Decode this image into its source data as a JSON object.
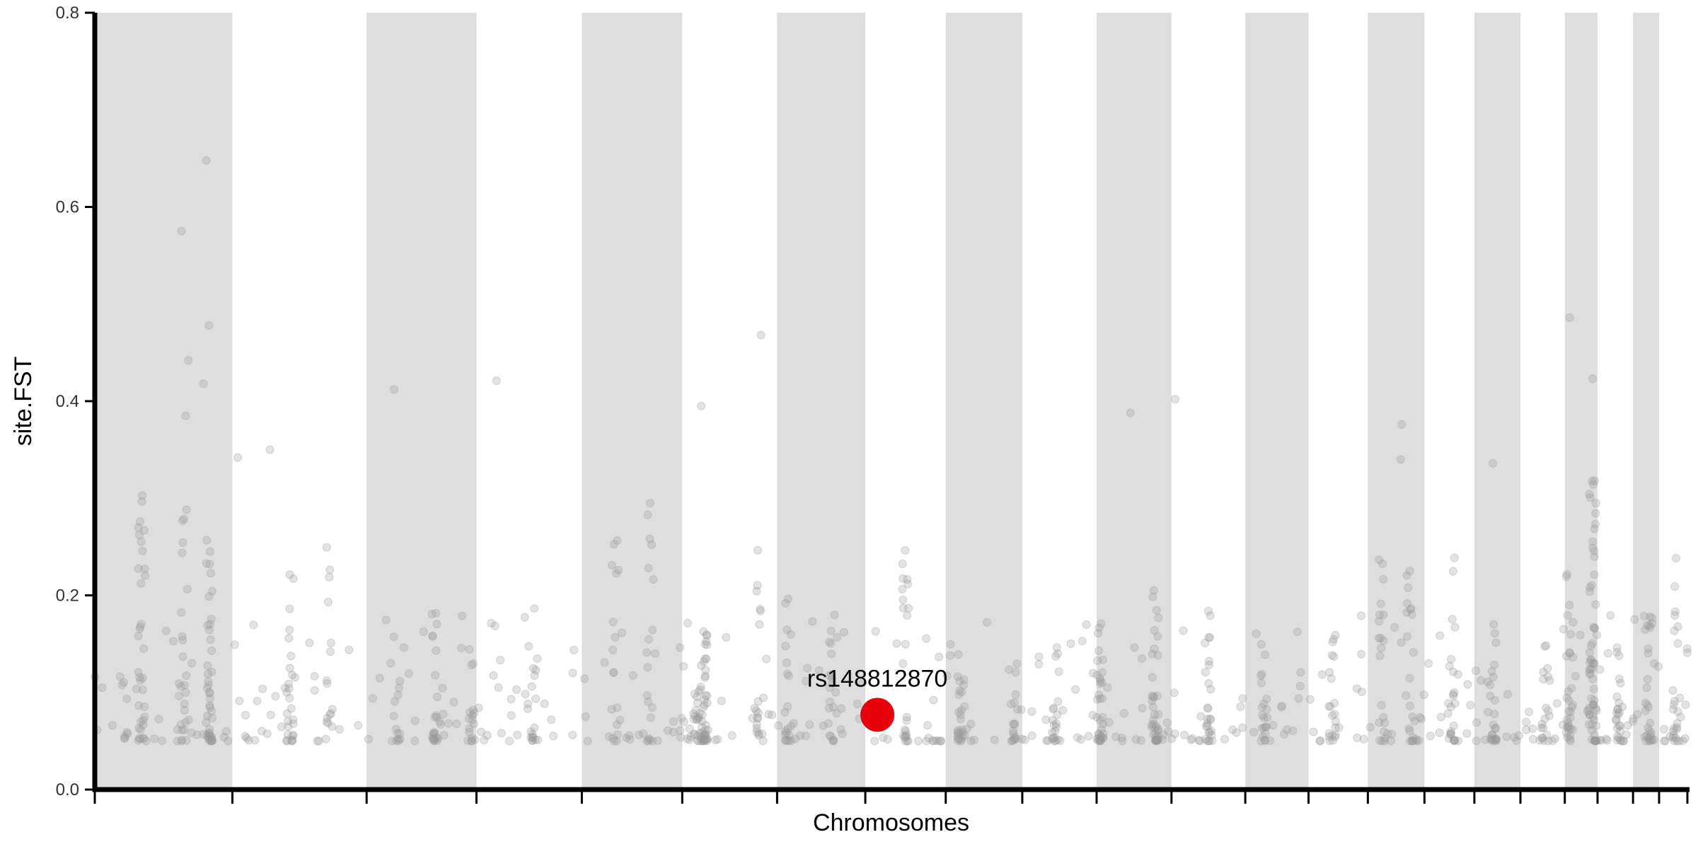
{
  "chart_data": {
    "type": "scatter",
    "title": "",
    "xlabel": "Chromosomes",
    "ylabel": "site.FST",
    "ylim": [
      0,
      0.8
    ],
    "yticks": [
      "0.0",
      "0.2",
      "0.4",
      "0.6",
      "0.8"
    ],
    "grid": false,
    "chromosome_band_color": "#dedede",
    "point_color": "#999999",
    "highlight_color": "#e8000b",
    "chromosomes": [
      {
        "index": 1,
        "length": 248,
        "shaded": true
      },
      {
        "index": 2,
        "length": 242,
        "shaded": false
      },
      {
        "index": 3,
        "length": 198,
        "shaded": true
      },
      {
        "index": 4,
        "length": 190,
        "shaded": false
      },
      {
        "index": 5,
        "length": 181,
        "shaded": true
      },
      {
        "index": 6,
        "length": 171,
        "shaded": false
      },
      {
        "index": 7,
        "length": 159,
        "shaded": true
      },
      {
        "index": 8,
        "length": 145,
        "shaded": false
      },
      {
        "index": 9,
        "length": 138,
        "shaded": true
      },
      {
        "index": 10,
        "length": 134,
        "shaded": false
      },
      {
        "index": 11,
        "length": 135,
        "shaded": true
      },
      {
        "index": 12,
        "length": 133,
        "shaded": false
      },
      {
        "index": 13,
        "length": 114,
        "shaded": true
      },
      {
        "index": 14,
        "length": 107,
        "shaded": false
      },
      {
        "index": 15,
        "length": 102,
        "shaded": true
      },
      {
        "index": 16,
        "length": 90,
        "shaded": false
      },
      {
        "index": 17,
        "length": 83,
        "shaded": true
      },
      {
        "index": 18,
        "length": 80,
        "shaded": false
      },
      {
        "index": 19,
        "length": 59,
        "shaded": true
      },
      {
        "index": 20,
        "length": 64,
        "shaded": false
      },
      {
        "index": 21,
        "length": 47,
        "shaded": true
      },
      {
        "index": 22,
        "length": 51,
        "shaded": false
      }
    ],
    "clusters": [
      {
        "chrom": 1,
        "pos": 0.34,
        "n": 34,
        "max": 0.32
      },
      {
        "chrom": 1,
        "pos": 0.65,
        "n": 22,
        "max": 0.29
      },
      {
        "chrom": 1,
        "pos": 0.83,
        "n": 42,
        "max": 0.28
      },
      {
        "chrom": 2,
        "pos": 0.43,
        "n": 18,
        "max": 0.25
      },
      {
        "chrom": 2,
        "pos": 0.72,
        "n": 14,
        "max": 0.26
      },
      {
        "chrom": 3,
        "pos": 0.28,
        "n": 12,
        "max": 0.17
      },
      {
        "chrom": 3,
        "pos": 0.62,
        "n": 22,
        "max": 0.26
      },
      {
        "chrom": 3,
        "pos": 0.96,
        "n": 12,
        "max": 0.15
      },
      {
        "chrom": 4,
        "pos": 0.55,
        "n": 16,
        "max": 0.23
      },
      {
        "chrom": 5,
        "pos": 0.33,
        "n": 16,
        "max": 0.26
      },
      {
        "chrom": 5,
        "pos": 0.68,
        "n": 16,
        "max": 0.3
      },
      {
        "chrom": 6,
        "pos": 0.15,
        "n": 16,
        "max": 0.12
      },
      {
        "chrom": 6,
        "pos": 0.23,
        "n": 44,
        "max": 0.17
      },
      {
        "chrom": 6,
        "pos": 0.82,
        "n": 16,
        "max": 0.25
      },
      {
        "chrom": 7,
        "pos": 0.12,
        "n": 20,
        "max": 0.21
      },
      {
        "chrom": 7,
        "pos": 0.62,
        "n": 18,
        "max": 0.18
      },
      {
        "chrom": 8,
        "pos": 0.5,
        "n": 22,
        "max": 0.27
      },
      {
        "chrom": 9,
        "pos": 0.2,
        "n": 20,
        "max": 0.12
      },
      {
        "chrom": 9,
        "pos": 0.9,
        "n": 16,
        "max": 0.13
      },
      {
        "chrom": 10,
        "pos": 0.45,
        "n": 20,
        "max": 0.18
      },
      {
        "chrom": 11,
        "pos": 0.05,
        "n": 36,
        "max": 0.18
      },
      {
        "chrom": 11,
        "pos": 0.78,
        "n": 36,
        "max": 0.22
      },
      {
        "chrom": 12,
        "pos": 0.5,
        "n": 24,
        "max": 0.19
      },
      {
        "chrom": 13,
        "pos": 0.3,
        "n": 18,
        "max": 0.15
      },
      {
        "chrom": 14,
        "pos": 0.4,
        "n": 18,
        "max": 0.17
      },
      {
        "chrom": 15,
        "pos": 0.25,
        "n": 20,
        "max": 0.28
      },
      {
        "chrom": 15,
        "pos": 0.75,
        "n": 20,
        "max": 0.24
      },
      {
        "chrom": 16,
        "pos": 0.55,
        "n": 20,
        "max": 0.27
      },
      {
        "chrom": 17,
        "pos": 0.4,
        "n": 22,
        "max": 0.21
      },
      {
        "chrom": 18,
        "pos": 0.55,
        "n": 16,
        "max": 0.15
      },
      {
        "chrom": 19,
        "pos": 0.15,
        "n": 26,
        "max": 0.23
      },
      {
        "chrom": 19,
        "pos": 0.85,
        "n": 60,
        "max": 0.34
      },
      {
        "chrom": 20,
        "pos": 0.6,
        "n": 22,
        "max": 0.15
      },
      {
        "chrom": 21,
        "pos": 0.6,
        "n": 22,
        "max": 0.21
      },
      {
        "chrom": 22,
        "pos": 0.6,
        "n": 20,
        "max": 0.27
      }
    ],
    "outliers": [
      {
        "chrom": 1,
        "pos": 0.63,
        "y": 0.575
      },
      {
        "chrom": 1,
        "pos": 0.81,
        "y": 0.648
      },
      {
        "chrom": 1,
        "pos": 0.83,
        "y": 0.478
      },
      {
        "chrom": 1,
        "pos": 0.68,
        "y": 0.442
      },
      {
        "chrom": 1,
        "pos": 0.79,
        "y": 0.418
      },
      {
        "chrom": 1,
        "pos": 0.66,
        "y": 0.385
      },
      {
        "chrom": 2,
        "pos": 0.04,
        "y": 0.342
      },
      {
        "chrom": 2,
        "pos": 0.28,
        "y": 0.35
      },
      {
        "chrom": 3,
        "pos": 0.25,
        "y": 0.412
      },
      {
        "chrom": 4,
        "pos": 0.19,
        "y": 0.421
      },
      {
        "chrom": 6,
        "pos": 0.2,
        "y": 0.395
      },
      {
        "chrom": 6,
        "pos": 0.83,
        "y": 0.468
      },
      {
        "chrom": 11,
        "pos": 0.45,
        "y": 0.388
      },
      {
        "chrom": 12,
        "pos": 0.05,
        "y": 0.402
      },
      {
        "chrom": 15,
        "pos": 0.6,
        "y": 0.376
      },
      {
        "chrom": 15,
        "pos": 0.58,
        "y": 0.34
      },
      {
        "chrom": 17,
        "pos": 0.4,
        "y": 0.336
      },
      {
        "chrom": 19,
        "pos": 0.15,
        "y": 0.486
      },
      {
        "chrom": 19,
        "pos": 0.85,
        "y": 0.423
      }
    ],
    "highlight": {
      "label": "rs148812870",
      "chrom": 8,
      "pos": 0.15,
      "y": 0.077
    }
  }
}
